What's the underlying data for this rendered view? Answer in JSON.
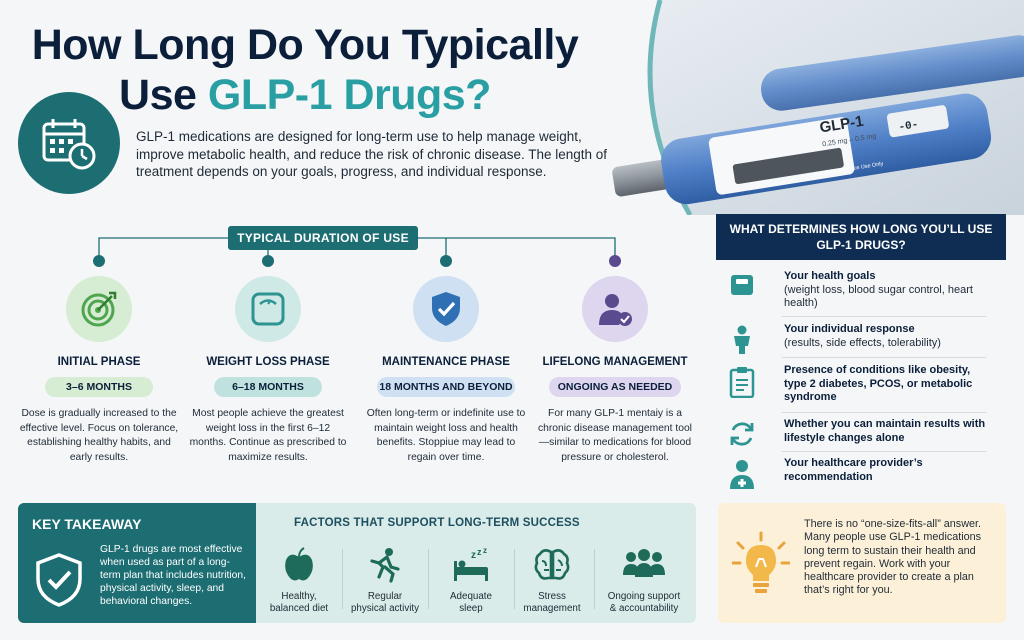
{
  "header": {
    "title_line1": "How Long Do You Typically",
    "title_line2_prefix": "Use ",
    "title_line2_accent": "GLP-1 Drugs?",
    "intro": "GLP-1 medications are designed for long-term use to help manage weight, improve metabolic health, and reduce the risk of chronic disease. The length of treatment depends on your goals, progress, and individual response."
  },
  "pen": {
    "label": "GLP-1",
    "dose": "0.25 mg – 0.5 mg",
    "note": "For Subcutaneous Use Only",
    "counter": "-0-"
  },
  "duration": {
    "banner": "TYPICAL DURATION OF USE",
    "phases": [
      {
        "title": "INITIAL PHASE",
        "pill": "3–6 MONTHS",
        "desc": "Dose is gradually increased to the effective level. Focus on tolerance, establishing healthy habits, and early results.",
        "color": "#5fb85f",
        "icon": "target-icon"
      },
      {
        "title": "WEIGHT LOSS PHASE",
        "pill": "6–18 MONTHS",
        "desc": "Most people achieve the greatest weight loss in the first 6–12 months. Continue as prescribed to maximize results.",
        "color": "#3fa9a7",
        "icon": "scale-icon"
      },
      {
        "title": "MAINTENANCE PHASE",
        "pill": "18 MONTHS AND BEYOND",
        "desc": "Often long-term or indefinite use to maintain weight loss and health benefits. Stoppiue may lead to regain over time.",
        "color": "#2f6fb3",
        "icon": "shield-check-icon"
      },
      {
        "title": "LIFELONG MANAGEMENT",
        "pill": "ONGOING AS NEEDED",
        "desc": "For many GLP-1 mentaiy is a chronic disease management tool—similar to medications for blood pressure or cholesterol.",
        "color": "#6f5aa8",
        "icon": "person-check-icon"
      }
    ]
  },
  "determinants": {
    "title": "WHAT DETERMINES HOW LONG YOU’LL USE GLP-1 DRUGS?",
    "items": [
      {
        "bold": "Your health goals",
        "rest": "(weight loss, blood sugar control, heart health)",
        "icon": "scale-icon"
      },
      {
        "bold": "Your individual response",
        "rest": "(results, side effects, tolerability)",
        "icon": "person-icon"
      },
      {
        "bold": "Presence of conditions like obesity, type 2 diabetes, PCOS, or metabolic syndrome",
        "rest": "",
        "icon": "clipboard-icon"
      },
      {
        "bold": "Whether you can maintain results with lifestyle changes alone",
        "rest": "",
        "icon": "refresh-icon"
      },
      {
        "bold": "Your healthcare provider’s recommendation",
        "rest": "",
        "icon": "doctor-icon"
      }
    ]
  },
  "takeaway": {
    "title": "KEY TAKEAWAY",
    "body": "GLP-1 drugs are most effective when used as part of a long-term plan that includes nutrition, physical activity, sleep, and behavioral changes."
  },
  "factors": {
    "title_prefix": "FACTORS THAT ",
    "title_bold": "SUPPORT LONG-TERM SUCCESS",
    "items": [
      {
        "label_line1": "Healthy,",
        "label_line2": "balanced diet",
        "icon": "apple-icon"
      },
      {
        "label_line1": "Regular",
        "label_line2": "physical activity",
        "icon": "runner-icon"
      },
      {
        "label_line1": "Adequate",
        "label_line2": "sleep",
        "icon": "sleep-icon"
      },
      {
        "label_line1": "Stress",
        "label_line2": "management",
        "icon": "brain-icon"
      },
      {
        "label_line1": "Ongoing support",
        "label_line2": "& accountability",
        "icon": "group-icon"
      }
    ]
  },
  "tip": {
    "text": "There is no “one-size-fits-all” answer. Many people use GLP-1 medications long term to sustain their health and prevent regain. Work with your healthcare provider to create a plan that’s right for you."
  }
}
